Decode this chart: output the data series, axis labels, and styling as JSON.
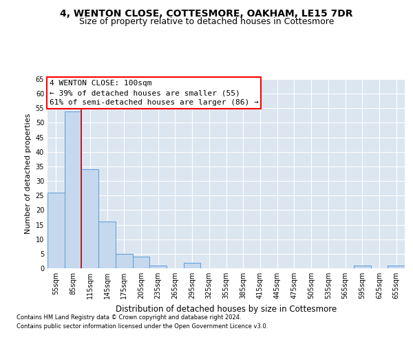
{
  "title1": "4, WENTON CLOSE, COTTESMORE, OAKHAM, LE15 7DR",
  "title2": "Size of property relative to detached houses in Cottesmore",
  "xlabel": "Distribution of detached houses by size in Cottesmore",
  "ylabel": "Number of detached properties",
  "footnote1": "Contains HM Land Registry data © Crown copyright and database right 2024.",
  "footnote2": "Contains public sector information licensed under the Open Government Licence v3.0.",
  "bin_labels": [
    "55sqm",
    "85sqm",
    "115sqm",
    "145sqm",
    "175sqm",
    "205sqm",
    "235sqm",
    "265sqm",
    "295sqm",
    "325sqm",
    "355sqm",
    "385sqm",
    "415sqm",
    "445sqm",
    "475sqm",
    "505sqm",
    "535sqm",
    "565sqm",
    "595sqm",
    "625sqm",
    "655sqm"
  ],
  "bar_values": [
    26,
    54,
    34,
    16,
    5,
    4,
    1,
    0,
    2,
    0,
    0,
    0,
    0,
    0,
    0,
    0,
    0,
    0,
    1,
    0,
    1
  ],
  "bar_color": "#c5d8ed",
  "bar_edge_color": "#5b9bd5",
  "property_line_x": 1.5,
  "annotation_title": "4 WENTON CLOSE: 100sqm",
  "annotation_line2": "← 39% of detached houses are smaller (55)",
  "annotation_line3": "61% of semi-detached houses are larger (86) →",
  "annotation_box_color": "white",
  "annotation_box_edge": "red",
  "ylim": [
    0,
    65
  ],
  "yticks": [
    0,
    5,
    10,
    15,
    20,
    25,
    30,
    35,
    40,
    45,
    50,
    55,
    60,
    65
  ],
  "plot_bg_color": "#dce6f1",
  "red_line_color": "#c00000",
  "title1_fontsize": 10,
  "title2_fontsize": 9,
  "ylabel_fontsize": 8,
  "xlabel_fontsize": 8.5,
  "tick_fontsize": 7,
  "annot_fontsize": 8,
  "footnote_fontsize": 6
}
